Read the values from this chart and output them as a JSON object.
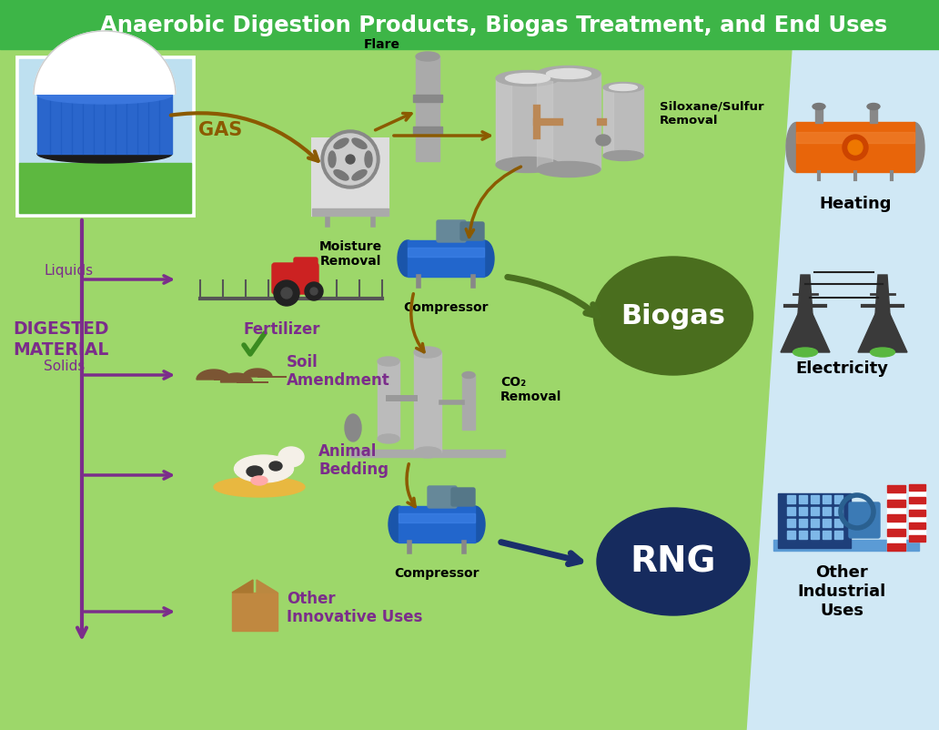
{
  "title": "Anaerobic Digestion Products, Biogas Treatment, and End Uses",
  "title_color": "#FFFFFF",
  "title_bg_color": "#3DB547",
  "bg_green": "#9DD76A",
  "bg_blue": "#D0E8F5",
  "purple": "#7B2D8B",
  "brown": "#8B5A00",
  "dark_green": "#4A7020",
  "navy": "#1A2F6B",
  "orange": "#E8650A",
  "gray_col": "#AAAAAA",
  "labels": {
    "gas": "GAS",
    "digested_material": "DIGESTED\nMATERIAL",
    "moisture_removal": "Moisture\nRemoval",
    "flare": "Flare",
    "siloxane": "Siloxane/Sulfur\nRemoval",
    "compressor1": "Compressor",
    "co2_removal": "CO₂\nRemoval",
    "compressor2": "Compressor",
    "biogas": "Biogas",
    "rng": "RNG",
    "liquids": "Liquids",
    "solids": "Solids",
    "fertilizer": "Fertilizer",
    "soil_amendment": "Soil\nAmendment",
    "animal_bedding": "Animal\nBedding",
    "other_innovative": "Other\nInnovative Uses",
    "heating": "Heating",
    "electricity": "Electricity",
    "other_industrial": "Other\nIndustrial\nUses"
  }
}
